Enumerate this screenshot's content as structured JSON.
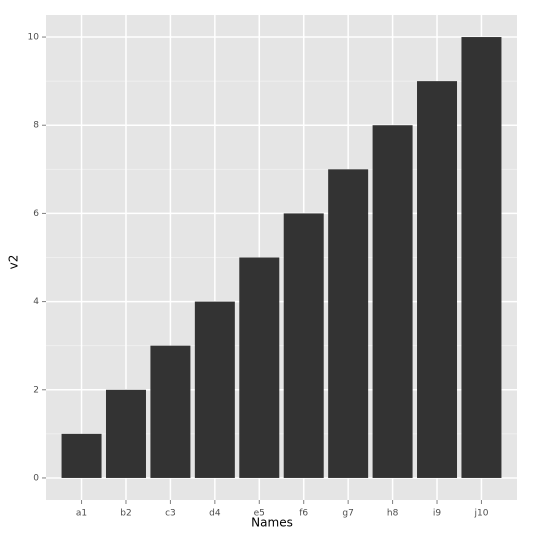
{
  "chart_data": {
    "type": "bar",
    "x_label": "Names",
    "y_label": "v2",
    "categories": [
      "a1",
      "b2",
      "c3",
      "d4",
      "e5",
      "f6",
      "g7",
      "h8",
      "i9",
      "j10"
    ],
    "values": [
      1,
      2,
      3,
      4,
      5,
      6,
      7,
      8,
      9,
      10
    ],
    "color": "#333333",
    "ylim": [
      -0.5,
      10.5
    ],
    "yticks": [
      0,
      2,
      4,
      6,
      8,
      10
    ],
    "grid": true
  }
}
